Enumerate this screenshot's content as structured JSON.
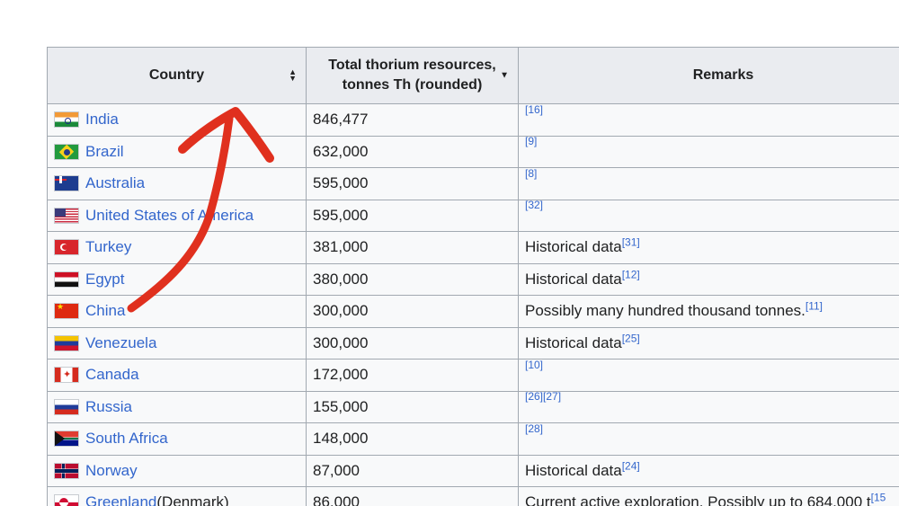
{
  "table": {
    "headers": {
      "country": "Country",
      "resources_line1": "Total thorium resources,",
      "resources_line2": "tonnes Th (rounded)",
      "remarks": "Remarks"
    },
    "rows": [
      {
        "country": "India",
        "flag": "india-flag-icon",
        "value": "846,477",
        "remark": "",
        "ref": "[16]"
      },
      {
        "country": "Brazil",
        "flag": "brazil-flag-icon",
        "value": "632,000",
        "remark": "",
        "ref": "[9]"
      },
      {
        "country": "Australia",
        "flag": "australia-flag-icon",
        "value": "595,000",
        "remark": "",
        "ref": "[8]"
      },
      {
        "country": "United States of America",
        "flag": "usa-flag-icon",
        "value": "595,000",
        "remark": "",
        "ref": "[32]"
      },
      {
        "country": "Turkey",
        "flag": "turkey-flag-icon",
        "value": "381,000",
        "remark": "Historical data",
        "ref": "[31]"
      },
      {
        "country": "Egypt",
        "flag": "egypt-flag-icon",
        "value": "380,000",
        "remark": "Historical data",
        "ref": "[12]"
      },
      {
        "country": "China",
        "flag": "china-flag-icon",
        "value": "300,000",
        "remark": "Possibly many hundred thousand tonnes.",
        "ref": "[11]"
      },
      {
        "country": "Venezuela",
        "flag": "venezuela-flag-icon",
        "value": "300,000",
        "remark": "Historical data",
        "ref": "[25]"
      },
      {
        "country": "Canada",
        "flag": "canada-flag-icon",
        "value": "172,000",
        "remark": "",
        "ref": "[10]"
      },
      {
        "country": "Russia",
        "flag": "russia-flag-icon",
        "value": "155,000",
        "remark": "",
        "ref": "[26][27]"
      },
      {
        "country": "South Africa",
        "flag": "south-africa-flag-icon",
        "value": "148,000",
        "remark": "",
        "ref": "[28]"
      },
      {
        "country": "Norway",
        "flag": "norway-flag-icon",
        "value": "87,000",
        "remark": "Historical data",
        "ref": "[24]"
      },
      {
        "country": "Greenland",
        "country_suffix": " (Denmark)",
        "flag": "greenland-flag-icon",
        "value": "86,000",
        "remark": "Current active exploration. Possibly up to 684,000 t",
        "ref": "[15"
      }
    ]
  },
  "colors": {
    "header_bg": "#eaecf0",
    "cell_bg": "#f8f9fa",
    "border": "#a2a9b1",
    "link": "#3366cc",
    "arrow": "#e0301e"
  },
  "icons": {
    "sort_both": "sort-both-icon",
    "sort_desc": "sort-desc-icon",
    "annotation_arrow": "red-arrow-annotation-icon"
  }
}
